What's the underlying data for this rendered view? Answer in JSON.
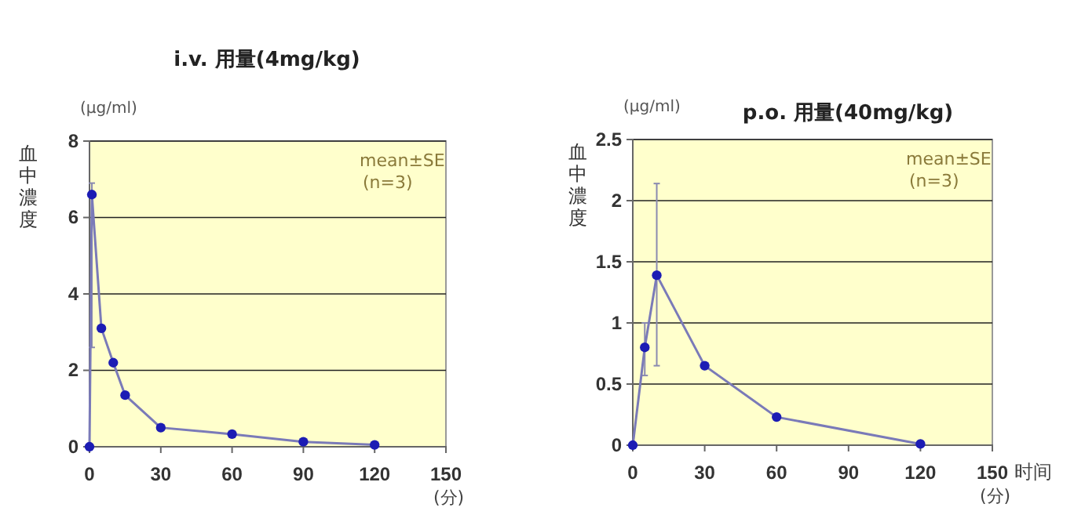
{
  "chart_data": [
    {
      "type": "line",
      "title": "i.v. 用量(4mg/kg)",
      "ylabel": "血中濃度",
      "xlabel": "(分)",
      "annotations": [
        "(μg/ml)",
        "mean±SE",
        "(n=3)"
      ],
      "xlim": [
        0,
        150
      ],
      "xticks": [
        0,
        30,
        60,
        90,
        120,
        150
      ],
      "ylim": [
        0,
        8
      ],
      "yticks": [
        0,
        2,
        4,
        6,
        8
      ],
      "grid": "y",
      "marker": "circle",
      "series": [
        {
          "color": "#1c1cb4",
          "x": [
            0,
            1,
            5,
            10,
            15,
            30,
            60,
            90,
            120
          ],
          "values": [
            0,
            6.6,
            3.1,
            2.2,
            1.35,
            0.5,
            0.33,
            0.13,
            0.05
          ],
          "errors": [
            null,
            [
              2.6,
              6.9
            ],
            null,
            null,
            null,
            null,
            null,
            null,
            null
          ]
        }
      ]
    },
    {
      "type": "line",
      "title": "p.o. 用量(40mg/kg)",
      "ylabel": "血中濃度",
      "xlabel": "时间 (分)",
      "annotations": [
        "(μg/ml)",
        "mean±SE",
        "(n=3)"
      ],
      "xlim": [
        0,
        150
      ],
      "xticks": [
        0,
        30,
        60,
        90,
        120,
        150
      ],
      "ylim": [
        0,
        2.5
      ],
      "yticks": [
        0,
        0.5,
        1,
        1.5,
        2,
        2.5
      ],
      "grid": "y",
      "marker": "circle",
      "series": [
        {
          "color": "#1c1cb4",
          "x": [
            0,
            5,
            10,
            30,
            60,
            120
          ],
          "values": [
            0,
            0.8,
            1.39,
            0.65,
            0.23,
            0.01
          ],
          "errors": [
            null,
            [
              0.57,
              1.0
            ],
            [
              0.65,
              2.14
            ],
            null,
            null,
            null
          ]
        }
      ]
    }
  ]
}
